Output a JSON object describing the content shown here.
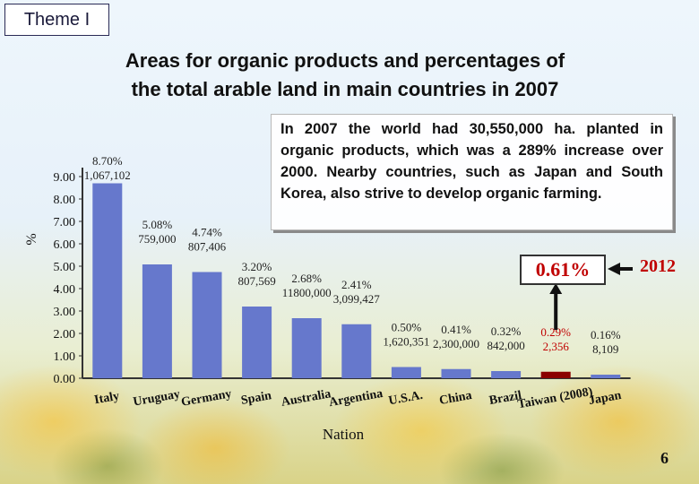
{
  "theme_label": "Theme I",
  "title_line1": "Areas for organic products and percentages of",
  "title_line2": "the total arable land in main countries in 2007",
  "note": "In 2007 the world had 30,550,000 ha. planted in organic products, which was a 289% increase over 2000. Nearby countries, such as Japan and South Korea, also strive to develop organic farming.",
  "highlight_value": "0.61%",
  "highlight_year": "2012",
  "page_number": "6",
  "colors": {
    "bar": "#6678cc",
    "highlight_bar": "#8b0000",
    "highlight_text": "#c00000",
    "arrow": "#111111"
  },
  "chart_data": {
    "type": "bar",
    "title": "Areas for organic products and percentages of the total arable land in main countries in 2007",
    "xlabel": "Nation",
    "ylabel": "%",
    "ylim": [
      0,
      9
    ],
    "yticks": [
      "0.00",
      "1.00",
      "2.00",
      "3.00",
      "4.00",
      "5.00",
      "6.00",
      "7.00",
      "8.00",
      "9.00"
    ],
    "categories": [
      "Italy",
      "Uruguay",
      "Germany",
      "Spain",
      "Australia",
      "Argentina",
      "U.S.A.",
      "China",
      "Brazil",
      "Taiwan (2008)",
      "Japan"
    ],
    "values": [
      8.7,
      5.08,
      4.74,
      3.2,
      2.68,
      2.41,
      0.5,
      0.41,
      0.32,
      0.29,
      0.16
    ],
    "percent_labels": [
      "8.70%",
      "5.08%",
      "4.74%",
      "3.20%",
      "2.68%",
      "2.41%",
      "0.50%",
      "0.41%",
      "0.32%",
      "0.29%",
      "0.16%"
    ],
    "area_labels": [
      "1,067,102",
      "759,000",
      "807,406",
      "807,569",
      "11800,000",
      "3,099,427",
      "1,620,351",
      "2,300,000",
      "842,000",
      "2,356",
      "8,109"
    ],
    "highlight_index": 9
  }
}
